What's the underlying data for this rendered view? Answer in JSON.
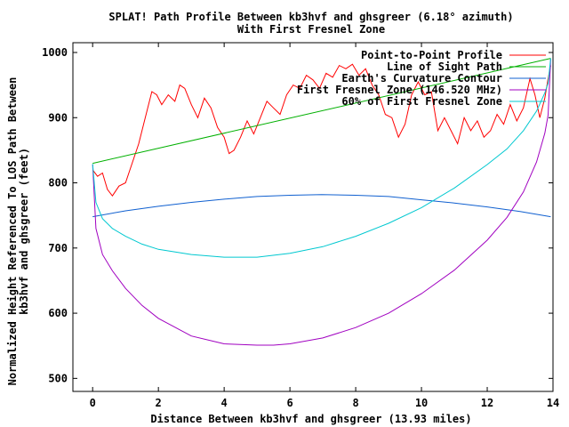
{
  "chart_data": {
    "type": "line",
    "title": "SPLAT! Path Profile Between kb3hvf and ghsgreer (6.18° azimuth)",
    "subtitle": "With First Fresnel Zone",
    "xlabel": "Distance Between kb3hvf and ghsgreer (13.93 miles)",
    "ylabel_line1": "Normalized Height Referenced To LOS Path Between",
    "ylabel_line2": "kb3hvf and ghsgreer (feet)",
    "xlim": [
      -0.6,
      14
    ],
    "ylim": [
      480,
      1015
    ],
    "x_ticks": [
      0,
      2,
      4,
      6,
      8,
      10,
      12,
      14
    ],
    "x_tick_labels": [
      "0",
      "2",
      "4",
      "6",
      "8",
      "10",
      "12",
      "14"
    ],
    "y_ticks": [
      500,
      600,
      700,
      800,
      900,
      1000
    ],
    "y_tick_labels": [
      "500",
      "600",
      "700",
      "800",
      "900",
      "1000"
    ],
    "legend_position": "top-right",
    "series": [
      {
        "name": "Point-to-Point Profile",
        "color": "#ff0000",
        "x": [
          0,
          0.15,
          0.3,
          0.45,
          0.6,
          0.8,
          1.0,
          1.2,
          1.4,
          1.6,
          1.8,
          1.95,
          2.1,
          2.3,
          2.5,
          2.65,
          2.8,
          3.0,
          3.2,
          3.4,
          3.6,
          3.8,
          4.0,
          4.15,
          4.3,
          4.5,
          4.7,
          4.9,
          5.1,
          5.3,
          5.5,
          5.7,
          5.9,
          6.1,
          6.3,
          6.5,
          6.7,
          6.9,
          7.1,
          7.3,
          7.5,
          7.7,
          7.9,
          8.1,
          8.3,
          8.5,
          8.7,
          8.9,
          9.1,
          9.3,
          9.5,
          9.7,
          9.9,
          10.1,
          10.3,
          10.5,
          10.7,
          10.9,
          11.1,
          11.3,
          11.5,
          11.7,
          11.9,
          12.1,
          12.3,
          12.5,
          12.7,
          12.9,
          13.1,
          13.3,
          13.45,
          13.6,
          13.75,
          13.85,
          13.93
        ],
        "values": [
          820,
          810,
          815,
          790,
          780,
          795,
          800,
          830,
          860,
          900,
          940,
          935,
          920,
          935,
          925,
          950,
          945,
          920,
          900,
          930,
          915,
          885,
          870,
          845,
          850,
          870,
          895,
          875,
          900,
          925,
          915,
          905,
          935,
          950,
          945,
          965,
          958,
          945,
          968,
          962,
          980,
          975,
          982,
          965,
          975,
          950,
          935,
          905,
          900,
          870,
          890,
          935,
          955,
          935,
          940,
          880,
          900,
          880,
          860,
          900,
          880,
          895,
          870,
          880,
          905,
          890,
          920,
          895,
          915,
          960,
          935,
          900,
          930,
          960,
          980
        ]
      },
      {
        "name": "Line of Sight Path",
        "color": "#00b000",
        "x": [
          0,
          13.93
        ],
        "values": [
          830,
          991
        ]
      },
      {
        "name": "Earth's Curvature Contour",
        "color": "#1060d0",
        "x": [
          0,
          1,
          2,
          3,
          4,
          5,
          6,
          6.965,
          8,
          9,
          10,
          11,
          12,
          13,
          13.93
        ],
        "values": [
          748,
          757,
          764,
          770,
          775,
          779,
          781,
          782,
          781,
          779,
          774,
          769,
          763,
          756,
          748
        ]
      },
      {
        "name": "First Fresnel Zone (146.520 MHz)",
        "color": "#a000c0",
        "x": [
          0,
          0.1,
          0.3,
          0.6,
          1,
          1.5,
          2,
          3,
          4,
          5,
          5.5,
          6,
          7,
          8,
          9,
          10,
          11,
          12,
          12.6,
          13.1,
          13.5,
          13.75,
          13.85,
          13.93
        ],
        "values": [
          828,
          730,
          690,
          665,
          638,
          612,
          592,
          565,
          553,
          551,
          551,
          553,
          562,
          578,
          600,
          630,
          666,
          712,
          747,
          786,
          832,
          876,
          904,
          990
        ]
      },
      {
        "name": "60% of First Fresnel Zone",
        "color": "#00c8d0",
        "x": [
          0,
          0.1,
          0.3,
          0.6,
          1,
          1.5,
          2,
          3,
          4,
          4.5,
          5,
          6,
          7,
          8,
          9,
          10,
          11,
          12,
          12.6,
          13.1,
          13.5,
          13.75,
          13.85,
          13.93
        ],
        "values": [
          829,
          770,
          745,
          730,
          718,
          706,
          698,
          690,
          686,
          686,
          686,
          692,
          702,
          718,
          738,
          762,
          792,
          828,
          852,
          880,
          910,
          938,
          953,
          991
        ]
      }
    ]
  }
}
